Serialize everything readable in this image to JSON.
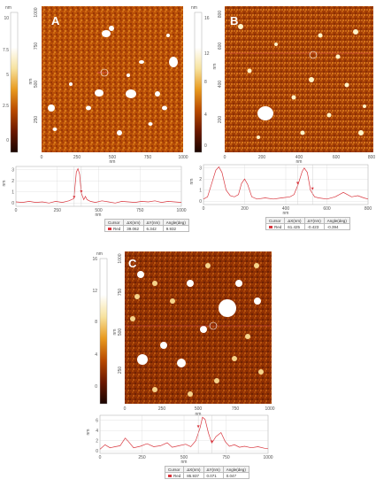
{
  "panels": [
    {
      "id": "A",
      "label": "A",
      "colorbar_unit": "nm",
      "colorbar_ticks": [
        "10",
        "7.5",
        "5",
        "2.5",
        "0"
      ],
      "y_ticks": [
        "1000",
        "750",
        "500",
        "250"
      ],
      "y_unit": "nm",
      "x_ticks": [
        "0",
        "250",
        "500",
        "750",
        "1000"
      ],
      "x_unit": "nm",
      "profile": {
        "y_unit": "nm",
        "y_ticks": [
          "3",
          "2",
          "1",
          "0"
        ],
        "x_ticks": [
          "0",
          "250",
          "500",
          "750",
          "1000"
        ],
        "x_unit": "nm",
        "ylim": [
          -0.3,
          3.3
        ],
        "xlim": [
          0,
          1000
        ],
        "points": [
          [
            0,
            0.1
          ],
          [
            40,
            0.05
          ],
          [
            80,
            0.15
          ],
          [
            120,
            0.05
          ],
          [
            160,
            0.1
          ],
          [
            200,
            0.0
          ],
          [
            240,
            0.15
          ],
          [
            280,
            0.05
          ],
          [
            320,
            0.2
          ],
          [
            350,
            0.4
          ],
          [
            365,
            2.8
          ],
          [
            375,
            3.1
          ],
          [
            385,
            2.6
          ],
          [
            395,
            0.9
          ],
          [
            410,
            0.3
          ],
          [
            420,
            0.6
          ],
          [
            430,
            0.3
          ],
          [
            450,
            0.15
          ],
          [
            480,
            0.05
          ],
          [
            520,
            0.2
          ],
          [
            560,
            0.1
          ],
          [
            600,
            0.0
          ],
          [
            640,
            0.15
          ],
          [
            680,
            0.1
          ],
          [
            720,
            0.05
          ],
          [
            760,
            0.15
          ],
          [
            800,
            0.1
          ],
          [
            840,
            0.2
          ],
          [
            880,
            0.05
          ],
          [
            920,
            0.15
          ],
          [
            960,
            0.1
          ],
          [
            1000,
            0.05
          ]
        ],
        "markers_x": [
          352,
          395
        ]
      },
      "table": {
        "headers": [
          "Cursor",
          "ΔX(nm)",
          "ΔY(nm)",
          "Angle(deg)"
        ],
        "row": {
          "name": "Red",
          "dx": "39.062",
          "dy": "6.342",
          "angle": "9.932"
        }
      }
    },
    {
      "id": "B",
      "label": "B",
      "colorbar_unit": "nm",
      "colorbar_ticks": [
        "16",
        "12",
        "8",
        "4",
        "0"
      ],
      "y_ticks": [
        "800",
        "600",
        "400",
        "200"
      ],
      "y_unit": "nm",
      "x_ticks": [
        "0",
        "200",
        "400",
        "600",
        "800"
      ],
      "x_unit": "nm",
      "profile": {
        "y_unit": "nm",
        "y_ticks": [
          "3",
          "2",
          "1",
          "0"
        ],
        "x_ticks": [
          "0",
          "200",
          "400",
          "600",
          "800"
        ],
        "x_unit": "nm",
        "ylim": [
          -0.3,
          3.3
        ],
        "xlim": [
          0,
          800
        ],
        "points": [
          [
            0,
            0.2
          ],
          [
            20,
            0.4
          ],
          [
            40,
            1.6
          ],
          [
            60,
            2.8
          ],
          [
            75,
            3.1
          ],
          [
            90,
            2.6
          ],
          [
            110,
            1.0
          ],
          [
            130,
            0.5
          ],
          [
            150,
            0.4
          ],
          [
            170,
            0.6
          ],
          [
            185,
            1.6
          ],
          [
            200,
            2.0
          ],
          [
            215,
            1.5
          ],
          [
            235,
            0.4
          ],
          [
            260,
            0.2
          ],
          [
            300,
            0.3
          ],
          [
            340,
            0.2
          ],
          [
            380,
            0.3
          ],
          [
            420,
            0.4
          ],
          [
            440,
            0.6
          ],
          [
            460,
            1.5
          ],
          [
            480,
            2.7
          ],
          [
            490,
            3.0
          ],
          [
            505,
            2.6
          ],
          [
            520,
            1.0
          ],
          [
            540,
            0.4
          ],
          [
            560,
            0.3
          ],
          [
            600,
            0.2
          ],
          [
            640,
            0.4
          ],
          [
            680,
            0.8
          ],
          [
            700,
            0.6
          ],
          [
            720,
            0.4
          ],
          [
            750,
            0.5
          ],
          [
            780,
            0.3
          ],
          [
            800,
            0.2
          ]
        ],
        "markers_x": [
          458,
          530
        ]
      },
      "table": {
        "headers": [
          "Cursor",
          "ΔX(nm)",
          "ΔY(nm)",
          "Angle(deg)"
        ],
        "row": {
          "name": "Red",
          "dx": "61.425",
          "dy": "-0.423",
          "angle": "-0.394"
        }
      }
    },
    {
      "id": "C",
      "label": "C",
      "colorbar_unit": "nm",
      "colorbar_ticks": [
        "16",
        "12",
        "8",
        "4",
        "0"
      ],
      "y_ticks": [
        "1000",
        "750",
        "500",
        "250"
      ],
      "y_unit": "nm",
      "x_ticks": [
        "0",
        "250",
        "500",
        "750",
        "1000"
      ],
      "x_unit": "nm",
      "profile": {
        "y_unit": "nm",
        "y_ticks": [
          "6",
          "4",
          "2",
          "0"
        ],
        "x_ticks": [
          "0",
          "250",
          "500",
          "750",
          "1000"
        ],
        "x_unit": "nm",
        "ylim": [
          -0.5,
          7
        ],
        "xlim": [
          0,
          1000
        ],
        "points": [
          [
            0,
            0.3
          ],
          [
            30,
            1.2
          ],
          [
            60,
            0.6
          ],
          [
            90,
            0.8
          ],
          [
            120,
            1.0
          ],
          [
            150,
            2.5
          ],
          [
            170,
            1.8
          ],
          [
            200,
            0.6
          ],
          [
            240,
            0.9
          ],
          [
            280,
            1.4
          ],
          [
            320,
            0.8
          ],
          [
            360,
            1.0
          ],
          [
            400,
            1.6
          ],
          [
            430,
            0.7
          ],
          [
            470,
            1.0
          ],
          [
            510,
            1.3
          ],
          [
            540,
            0.8
          ],
          [
            570,
            2.0
          ],
          [
            595,
            4.5
          ],
          [
            610,
            6.6
          ],
          [
            625,
            6.2
          ],
          [
            645,
            3.5
          ],
          [
            665,
            1.5
          ],
          [
            690,
            2.8
          ],
          [
            720,
            3.6
          ],
          [
            745,
            1.8
          ],
          [
            770,
            0.9
          ],
          [
            800,
            1.2
          ],
          [
            830,
            0.7
          ],
          [
            860,
            0.9
          ],
          [
            900,
            0.6
          ],
          [
            940,
            0.8
          ],
          [
            980,
            0.5
          ],
          [
            1000,
            0.4
          ]
        ],
        "markers_x": [
          585,
          665
        ]
      },
      "table": {
        "headers": [
          "Cursor",
          "ΔX(nm)",
          "ΔY(nm)",
          "Angle(deg)"
        ],
        "row": {
          "name": "Red",
          "dx": "85.937",
          "dy": "0.071",
          "angle": "0.047"
        }
      }
    }
  ]
}
